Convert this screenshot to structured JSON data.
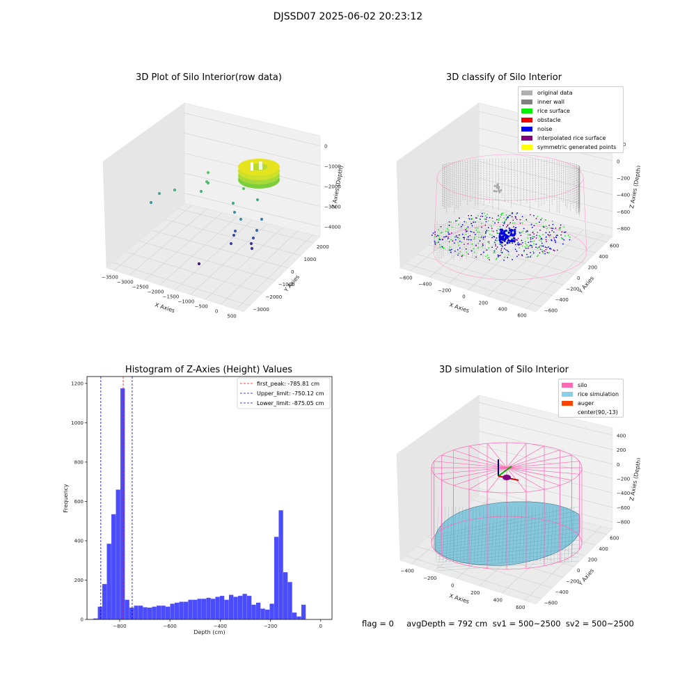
{
  "suptitle": "DJSSD07 2025-06-02 20:23:12",
  "footer_text": "flag = 0     avgDepth = 792 cm  sv1 = 500~2500  sv2 = 500~2500",
  "chart_data": [
    {
      "type": "scatter3d",
      "title": "3D Plot of Silo Interior(row data)",
      "xlabel": "X Axies",
      "ylabel": "Y Axies",
      "zlabel": "Z Axies (Depth)",
      "xticks": [
        "−3500",
        "−3000",
        "−2500",
        "−2000",
        "−1500",
        "−1000",
        "−500",
        "0",
        "500"
      ],
      "yticks": [
        "−3000",
        "−2000",
        "−1000",
        "0",
        "1000",
        "2000"
      ],
      "zticks": [
        "−4000",
        "−3000",
        "−2000",
        "−1000",
        "0"
      ],
      "colormap": "viridis"
    },
    {
      "type": "scatter3d",
      "title": "3D classify of Silo Interior",
      "xlabel": "X Axies",
      "ylabel": "Y Axies",
      "zlabel": "Z Axies (Depth)",
      "xticks": [
        "−600",
        "−400",
        "−200",
        "0",
        "200",
        "400",
        "600"
      ],
      "yticks": [
        "−600",
        "−400",
        "−200",
        "0",
        "200",
        "400",
        "600"
      ],
      "zticks": [
        "−800",
        "−600",
        "−400",
        "−200",
        "0",
        "200"
      ],
      "legend": [
        {
          "label": "original data",
          "color": "#b0b0b0"
        },
        {
          "label": "inner wall",
          "color": "#808080"
        },
        {
          "label": "rice surface",
          "color": "#00ee00"
        },
        {
          "label": "obstacle",
          "color": "#ee0000"
        },
        {
          "label": "noise",
          "color": "#0000ee"
        },
        {
          "label": "interpolated rice surface",
          "color": "#800080"
        },
        {
          "label": "symmetric generated points",
          "color": "#ffff00"
        }
      ]
    },
    {
      "type": "bar",
      "title": "Histogram of Z-Axies (Height) Values",
      "xlabel": "Depth (cm)",
      "ylabel": "Frequency",
      "xlim": [
        -930,
        45
      ],
      "ylim": [
        0,
        1235
      ],
      "xticks": [
        {
          "v": -800,
          "t": "−800"
        },
        {
          "v": -600,
          "t": "−600"
        },
        {
          "v": -400,
          "t": "−400"
        },
        {
          "v": -200,
          "t": "−200"
        },
        {
          "v": 0,
          "t": "0"
        }
      ],
      "yticks": [
        0,
        200,
        400,
        600,
        800,
        1000,
        1200
      ],
      "bin_start": -905,
      "bin_width": 18,
      "values": [
        5,
        65,
        180,
        385,
        535,
        660,
        1175,
        100,
        60,
        70,
        70,
        62,
        60,
        65,
        70,
        70,
        65,
        80,
        85,
        90,
        90,
        100,
        100,
        105,
        105,
        110,
        105,
        115,
        120,
        100,
        125,
        115,
        120,
        130,
        120,
        75,
        85,
        55,
        50,
        80,
        420,
        555,
        240,
        190,
        35,
        15,
        75
      ],
      "bar_color": "#0000ff",
      "vlines": [
        {
          "x": -785.81,
          "color": "#ff0000",
          "label": "first_peak: -785.81 cm"
        },
        {
          "x": -750.12,
          "color": "#0000aa",
          "label": "Upper_limit: -750.12 cm"
        },
        {
          "x": -875.05,
          "color": "#0000aa",
          "label": "Lower_limit: -875.05 cm"
        }
      ],
      "legend_placement": "top-right"
    },
    {
      "type": "surface3d",
      "title": "3D simulation of Silo Interior",
      "xlabel": "X Axies",
      "ylabel": "Y Axies",
      "zlabel": "Z Axies (Depth)",
      "xticks": [
        "−400",
        "−200",
        "0",
        "200",
        "400",
        "600"
      ],
      "yticks": [
        "−600",
        "−400",
        "−200",
        "0",
        "200",
        "400",
        "600"
      ],
      "zticks": [
        "−800",
        "−600",
        "−400",
        "−200",
        "0",
        "200",
        "400"
      ],
      "legend": [
        {
          "label": "silo",
          "color": "#ff69b4"
        },
        {
          "label": "rice simulation",
          "color": "#87ceeb"
        },
        {
          "label": "auger",
          "color": "#ff4500"
        },
        {
          "label": "center(90,-13)",
          "color": "#ffffff"
        }
      ]
    }
  ]
}
